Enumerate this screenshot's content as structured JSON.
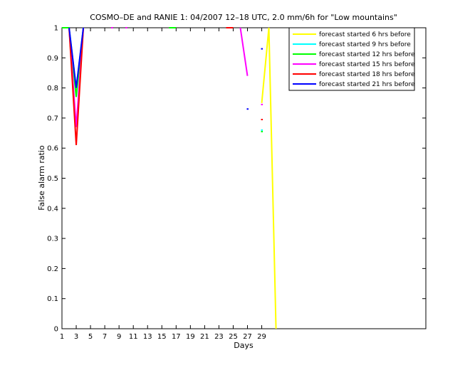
{
  "chart_data": {
    "type": "line",
    "title": "COSMO–DE and RANIE 1: 04/2007 12–18 UTC, 2.0 mm/6h for \"Low mountains\"",
    "x_label": "Days",
    "y_label": "False alarm ratio",
    "x": [
      1,
      2,
      3,
      4,
      5,
      6,
      7,
      8,
      9,
      10,
      11,
      12,
      13,
      14,
      15,
      16,
      17,
      18,
      19,
      20,
      21,
      22,
      23,
      24,
      25,
      26,
      27,
      28,
      29,
      30,
      31
    ],
    "series": [
      {
        "name": "forecast started 6 hrs before",
        "color": "#ffff00",
        "values": [
          null,
          null,
          null,
          null,
          null,
          null,
          null,
          null,
          null,
          null,
          null,
          null,
          null,
          null,
          null,
          null,
          null,
          null,
          null,
          null,
          null,
          null,
          null,
          null,
          null,
          null,
          null,
          null,
          0.75,
          1,
          0
        ]
      },
      {
        "name": "forecast started 9 hrs before",
        "color": "#00ffff",
        "values": [
          null,
          1,
          0.8,
          1,
          null,
          null,
          null,
          null,
          null,
          null,
          null,
          null,
          null,
          null,
          null,
          null,
          null,
          null,
          null,
          null,
          null,
          null,
          null,
          null,
          null,
          null,
          null,
          null,
          0.66,
          null,
          null
        ]
      },
      {
        "name": "forecast started 12 hrs before",
        "color": "#00ff00",
        "values": [
          1,
          1,
          0.77,
          1,
          null,
          null,
          null,
          null,
          null,
          null,
          null,
          null,
          null,
          null,
          null,
          1,
          1,
          null,
          null,
          null,
          null,
          null,
          null,
          null,
          null,
          null,
          null,
          null,
          0.655,
          null,
          null
        ]
      },
      {
        "name": "forecast started 15 hrs before",
        "color": "#ff00ff",
        "values": [
          null,
          1,
          0.67,
          1,
          null,
          null,
          null,
          1,
          null,
          1,
          null,
          null,
          null,
          null,
          null,
          null,
          null,
          null,
          null,
          null,
          null,
          null,
          null,
          null,
          null,
          1,
          0.84,
          null,
          0.745,
          null,
          null
        ]
      },
      {
        "name": "forecast started 18 hrs before",
        "color": "#ff0000",
        "values": [
          null,
          1,
          0.61,
          1,
          null,
          null,
          null,
          null,
          null,
          null,
          null,
          null,
          null,
          null,
          null,
          null,
          null,
          null,
          null,
          null,
          null,
          null,
          null,
          1,
          1,
          null,
          null,
          null,
          0.695,
          null,
          null
        ]
      },
      {
        "name": "forecast started 21 hrs before",
        "color": "#0000ff",
        "values": [
          null,
          1,
          0.8,
          1,
          null,
          null,
          null,
          null,
          null,
          null,
          null,
          null,
          null,
          null,
          null,
          null,
          null,
          null,
          null,
          null,
          null,
          null,
          null,
          null,
          null,
          null,
          0.73,
          null,
          0.93,
          null,
          null
        ]
      }
    ],
    "xlim": [
      1,
      52
    ],
    "xticks": [
      1,
      3,
      5,
      7,
      9,
      11,
      13,
      15,
      17,
      19,
      21,
      23,
      25,
      27,
      29
    ],
    "ylim": [
      0,
      1
    ],
    "yticks": [
      0,
      0.1,
      0.2,
      0.3,
      0.4,
      0.5,
      0.6,
      0.7,
      0.8,
      0.9,
      1
    ],
    "legend": "top-right"
  }
}
